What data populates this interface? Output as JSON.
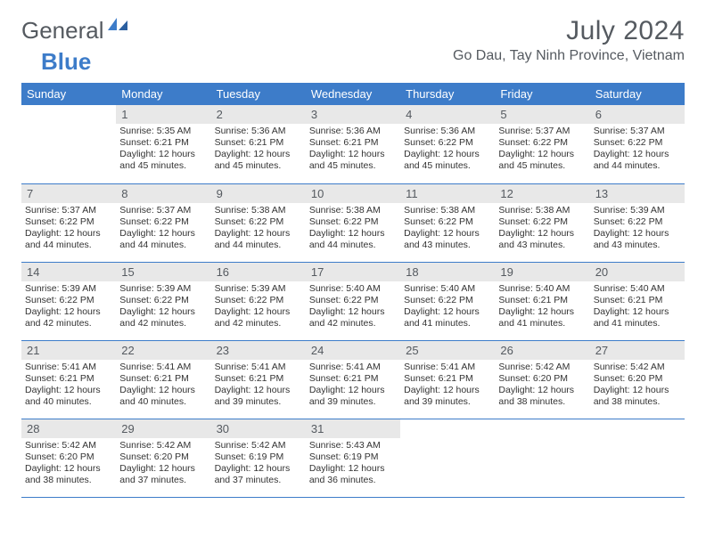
{
  "logo": {
    "text_general": "General",
    "text_blue": "Blue"
  },
  "title": "July 2024",
  "location": "Go Dau, Tay Ninh Province, Vietnam",
  "day_headers": [
    "Sunday",
    "Monday",
    "Tuesday",
    "Wednesday",
    "Thursday",
    "Friday",
    "Saturday"
  ],
  "colors": {
    "header_bg": "#3d7cc9",
    "header_fg": "#ffffff",
    "daynum_bg": "#e8e8e8",
    "daynum_fg": "#555a60",
    "border": "#3d7cc9",
    "text": "#333333",
    "title_color": "#555a60"
  },
  "weeks": [
    [
      {
        "n": "",
        "sunrise": "",
        "sunset": "",
        "daylight": ""
      },
      {
        "n": "1",
        "sunrise": "Sunrise: 5:35 AM",
        "sunset": "Sunset: 6:21 PM",
        "daylight": "Daylight: 12 hours and 45 minutes."
      },
      {
        "n": "2",
        "sunrise": "Sunrise: 5:36 AM",
        "sunset": "Sunset: 6:21 PM",
        "daylight": "Daylight: 12 hours and 45 minutes."
      },
      {
        "n": "3",
        "sunrise": "Sunrise: 5:36 AM",
        "sunset": "Sunset: 6:21 PM",
        "daylight": "Daylight: 12 hours and 45 minutes."
      },
      {
        "n": "4",
        "sunrise": "Sunrise: 5:36 AM",
        "sunset": "Sunset: 6:22 PM",
        "daylight": "Daylight: 12 hours and 45 minutes."
      },
      {
        "n": "5",
        "sunrise": "Sunrise: 5:37 AM",
        "sunset": "Sunset: 6:22 PM",
        "daylight": "Daylight: 12 hours and 45 minutes."
      },
      {
        "n": "6",
        "sunrise": "Sunrise: 5:37 AM",
        "sunset": "Sunset: 6:22 PM",
        "daylight": "Daylight: 12 hours and 44 minutes."
      }
    ],
    [
      {
        "n": "7",
        "sunrise": "Sunrise: 5:37 AM",
        "sunset": "Sunset: 6:22 PM",
        "daylight": "Daylight: 12 hours and 44 minutes."
      },
      {
        "n": "8",
        "sunrise": "Sunrise: 5:37 AM",
        "sunset": "Sunset: 6:22 PM",
        "daylight": "Daylight: 12 hours and 44 minutes."
      },
      {
        "n": "9",
        "sunrise": "Sunrise: 5:38 AM",
        "sunset": "Sunset: 6:22 PM",
        "daylight": "Daylight: 12 hours and 44 minutes."
      },
      {
        "n": "10",
        "sunrise": "Sunrise: 5:38 AM",
        "sunset": "Sunset: 6:22 PM",
        "daylight": "Daylight: 12 hours and 44 minutes."
      },
      {
        "n": "11",
        "sunrise": "Sunrise: 5:38 AM",
        "sunset": "Sunset: 6:22 PM",
        "daylight": "Daylight: 12 hours and 43 minutes."
      },
      {
        "n": "12",
        "sunrise": "Sunrise: 5:38 AM",
        "sunset": "Sunset: 6:22 PM",
        "daylight": "Daylight: 12 hours and 43 minutes."
      },
      {
        "n": "13",
        "sunrise": "Sunrise: 5:39 AM",
        "sunset": "Sunset: 6:22 PM",
        "daylight": "Daylight: 12 hours and 43 minutes."
      }
    ],
    [
      {
        "n": "14",
        "sunrise": "Sunrise: 5:39 AM",
        "sunset": "Sunset: 6:22 PM",
        "daylight": "Daylight: 12 hours and 42 minutes."
      },
      {
        "n": "15",
        "sunrise": "Sunrise: 5:39 AM",
        "sunset": "Sunset: 6:22 PM",
        "daylight": "Daylight: 12 hours and 42 minutes."
      },
      {
        "n": "16",
        "sunrise": "Sunrise: 5:39 AM",
        "sunset": "Sunset: 6:22 PM",
        "daylight": "Daylight: 12 hours and 42 minutes."
      },
      {
        "n": "17",
        "sunrise": "Sunrise: 5:40 AM",
        "sunset": "Sunset: 6:22 PM",
        "daylight": "Daylight: 12 hours and 42 minutes."
      },
      {
        "n": "18",
        "sunrise": "Sunrise: 5:40 AM",
        "sunset": "Sunset: 6:22 PM",
        "daylight": "Daylight: 12 hours and 41 minutes."
      },
      {
        "n": "19",
        "sunrise": "Sunrise: 5:40 AM",
        "sunset": "Sunset: 6:21 PM",
        "daylight": "Daylight: 12 hours and 41 minutes."
      },
      {
        "n": "20",
        "sunrise": "Sunrise: 5:40 AM",
        "sunset": "Sunset: 6:21 PM",
        "daylight": "Daylight: 12 hours and 41 minutes."
      }
    ],
    [
      {
        "n": "21",
        "sunrise": "Sunrise: 5:41 AM",
        "sunset": "Sunset: 6:21 PM",
        "daylight": "Daylight: 12 hours and 40 minutes."
      },
      {
        "n": "22",
        "sunrise": "Sunrise: 5:41 AM",
        "sunset": "Sunset: 6:21 PM",
        "daylight": "Daylight: 12 hours and 40 minutes."
      },
      {
        "n": "23",
        "sunrise": "Sunrise: 5:41 AM",
        "sunset": "Sunset: 6:21 PM",
        "daylight": "Daylight: 12 hours and 39 minutes."
      },
      {
        "n": "24",
        "sunrise": "Sunrise: 5:41 AM",
        "sunset": "Sunset: 6:21 PM",
        "daylight": "Daylight: 12 hours and 39 minutes."
      },
      {
        "n": "25",
        "sunrise": "Sunrise: 5:41 AM",
        "sunset": "Sunset: 6:21 PM",
        "daylight": "Daylight: 12 hours and 39 minutes."
      },
      {
        "n": "26",
        "sunrise": "Sunrise: 5:42 AM",
        "sunset": "Sunset: 6:20 PM",
        "daylight": "Daylight: 12 hours and 38 minutes."
      },
      {
        "n": "27",
        "sunrise": "Sunrise: 5:42 AM",
        "sunset": "Sunset: 6:20 PM",
        "daylight": "Daylight: 12 hours and 38 minutes."
      }
    ],
    [
      {
        "n": "28",
        "sunrise": "Sunrise: 5:42 AM",
        "sunset": "Sunset: 6:20 PM",
        "daylight": "Daylight: 12 hours and 38 minutes."
      },
      {
        "n": "29",
        "sunrise": "Sunrise: 5:42 AM",
        "sunset": "Sunset: 6:20 PM",
        "daylight": "Daylight: 12 hours and 37 minutes."
      },
      {
        "n": "30",
        "sunrise": "Sunrise: 5:42 AM",
        "sunset": "Sunset: 6:19 PM",
        "daylight": "Daylight: 12 hours and 37 minutes."
      },
      {
        "n": "31",
        "sunrise": "Sunrise: 5:43 AM",
        "sunset": "Sunset: 6:19 PM",
        "daylight": "Daylight: 12 hours and 36 minutes."
      },
      {
        "n": "",
        "sunrise": "",
        "sunset": "",
        "daylight": ""
      },
      {
        "n": "",
        "sunrise": "",
        "sunset": "",
        "daylight": ""
      },
      {
        "n": "",
        "sunrise": "",
        "sunset": "",
        "daylight": ""
      }
    ]
  ]
}
